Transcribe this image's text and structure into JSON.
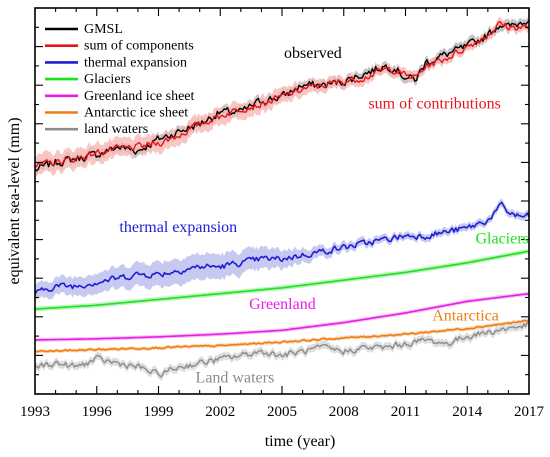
{
  "chart_data": {
    "type": "line",
    "title": "",
    "xlabel": "time (year)",
    "ylabel": "equivalent sea-level (mm)",
    "xlim": [
      1993,
      2017
    ],
    "ylim": [
      0,
      100
    ],
    "x_ticks": [
      1993,
      1996,
      1999,
      2002,
      2005,
      2008,
      2011,
      2014,
      2017
    ],
    "x_tick_labels": [
      "1993",
      "1996",
      "1999",
      "2002",
      "2005",
      "2008",
      "2011",
      "2014",
      "2017"
    ],
    "y_tick_labels_shown": false,
    "legend": {
      "placement": "top-left",
      "entries": [
        {
          "label": "GMSL",
          "color": "#000000"
        },
        {
          "label": "sum of components",
          "color": "#e8141b"
        },
        {
          "label": "thermal expansion",
          "color": "#1f1fd6"
        },
        {
          "label": "Glaciers",
          "color": "#1ee01e"
        },
        {
          "label": "Greenland ice sheet",
          "color": "#e81ee8"
        },
        {
          "label": "Antarctic ice sheet",
          "color": "#f07d14"
        },
        {
          "label": "land waters",
          "color": "#8c8c8c"
        }
      ]
    },
    "series": [
      {
        "key": "gmsl",
        "name": "GMSL",
        "color": "#000000",
        "width": 1.4,
        "noise": 1.3,
        "band_color": "#b5b5b5",
        "band": 1.2,
        "x": [
          1993,
          1994,
          1995,
          1996,
          1997,
          1998,
          1999,
          2000,
          2001,
          2002,
          2003,
          2004,
          2005,
          2006,
          2007,
          2008,
          2009,
          2010,
          2010.5,
          2011,
          2011.5,
          2012,
          2013,
          2014,
          2015,
          2015.6,
          2016,
          2016.5,
          2017
        ],
        "y": [
          58,
          60,
          61,
          62,
          64,
          63,
          66,
          68,
          70,
          73,
          73,
          76,
          77,
          80,
          80,
          81,
          83,
          85,
          84.5,
          82,
          81.5,
          86,
          88,
          90,
          93,
          96,
          95,
          96,
          97.5
        ]
      },
      {
        "key": "sum",
        "name": "sum of components",
        "color": "#e8141b",
        "width": 1.4,
        "noise": 1.1,
        "band_color": "#f6b8b4",
        "x": [
          1993,
          1994,
          1995,
          1996,
          1997,
          1998,
          1999,
          2000,
          2001,
          2002,
          2003,
          2004,
          2005,
          2006,
          2007,
          2008,
          2009,
          2010,
          2010.5,
          2011,
          2011.5,
          2012,
          2013,
          2014,
          2015,
          2015.6,
          2016,
          2016.5,
          2017
        ],
        "y": [
          59,
          60,
          61,
          62.5,
          63.5,
          64,
          65,
          67,
          70,
          72,
          74,
          75,
          77,
          79,
          80,
          81,
          82,
          84,
          84,
          82.5,
          82,
          85,
          87,
          90,
          93,
          96,
          95,
          95,
          95
        ],
        "band": [
          2.6,
          2.6,
          2.5,
          2.5,
          2.4,
          2.4,
          2.3,
          2.3,
          2.2,
          2.2,
          2.1,
          2.1,
          2.0,
          1.8,
          1.6,
          1.5,
          1.4,
          1.3,
          1.3,
          1.3,
          1.3,
          1.2,
          1.2,
          1.2,
          1.2,
          1.2,
          1.2,
          1.2,
          1.2
        ]
      },
      {
        "key": "thermal",
        "name": "thermal expansion",
        "color": "#1f1fd6",
        "width": 1.6,
        "noise": 1.0,
        "band_color": "#b9bbee",
        "x": [
          1993,
          1994,
          1995,
          1996,
          1997,
          1998,
          1999,
          2000,
          2001,
          2002,
          2003,
          2004,
          2005,
          2006,
          2007,
          2008,
          2009,
          2010,
          2011,
          2012,
          2013,
          2014,
          2015,
          2015.7,
          2016,
          2016.5,
          2017
        ],
        "y": [
          26,
          28,
          28,
          29,
          30,
          31,
          31,
          32,
          33,
          33,
          34,
          35,
          35,
          36,
          37,
          38,
          39,
          40,
          41,
          41,
          42,
          43,
          45,
          49,
          47,
          46,
          46
        ],
        "band": [
          2.0,
          2.2,
          2.4,
          2.6,
          2.8,
          3.0,
          3.2,
          3.3,
          3.3,
          3.2,
          3.0,
          2.8,
          2.4,
          1.8,
          1.4,
          1.2,
          1.1,
          1.0,
          1.0,
          1.0,
          1.0,
          1.0,
          1.0,
          1.0,
          1.0,
          1.0,
          1.0
        ]
      },
      {
        "key": "glaciers",
        "name": "Glaciers",
        "color": "#1ee01e",
        "width": 1.6,
        "noise": 0.0,
        "band_color": "#a8f2a8",
        "band": 0.6,
        "x": [
          1993,
          1996,
          1999,
          2002,
          2005,
          2008,
          2011,
          2014,
          2017
        ],
        "y": [
          22,
          23,
          24.5,
          26,
          27.5,
          29.5,
          31.5,
          34,
          37
        ]
      },
      {
        "key": "greenland",
        "name": "Greenland ice sheet",
        "color": "#e81ee8",
        "width": 1.6,
        "noise": 0.0,
        "band_color": "#f4b2f4",
        "band": 0.5,
        "x": [
          1993,
          1996,
          1999,
          2002,
          2005,
          2008,
          2011,
          2014,
          2017
        ],
        "y": [
          14,
          14.3,
          14.8,
          15.5,
          16.5,
          18.5,
          21,
          24,
          26
        ]
      },
      {
        "key": "antarctic",
        "name": "Antarctic ice sheet",
        "color": "#f07d14",
        "width": 1.6,
        "noise": 0.25,
        "band_color": "#f9cfa5",
        "band": 0.5,
        "x": [
          1993,
          1996,
          1999,
          2002,
          2005,
          2008,
          2011,
          2014,
          2017
        ],
        "y": [
          11,
          11.5,
          12,
          12.5,
          13.5,
          14.5,
          15.5,
          17,
          19
        ]
      },
      {
        "key": "land",
        "name": "land waters",
        "color": "#8c8c8c",
        "width": 1.4,
        "noise": 1.0,
        "band_color": "#d6d6d6",
        "band": 1.0,
        "x": [
          1993,
          1994,
          1995,
          1996,
          1997,
          1998,
          1999,
          2000,
          2001,
          2002,
          2003,
          2004,
          2005,
          2006,
          2007,
          2008,
          2009,
          2010,
          2011,
          2012,
          2013,
          2014,
          2015,
          2016,
          2017
        ],
        "y": [
          7,
          8,
          7,
          9,
          8,
          7,
          5,
          7,
          8,
          9,
          10,
          11,
          10,
          11,
          12,
          11,
          12,
          12,
          13,
          14,
          13,
          15,
          16,
          17,
          18
        ]
      }
    ],
    "annotations": [
      {
        "text": "observed",
        "color": "#000000",
        "x": 2005.1,
        "y": 87
      },
      {
        "text": "sum of contributions",
        "color": "#e8141b",
        "x": 2009.2,
        "y": 74
      },
      {
        "text": "thermal expansion",
        "color": "#1f1fd6",
        "x": 1997.1,
        "y": 42
      },
      {
        "text": "Glaciers",
        "color": "#1ee01e",
        "x": 2014.4,
        "y": 39
      },
      {
        "text": "Greenland",
        "color": "#e81ee8",
        "x": 2003.4,
        "y": 22
      },
      {
        "text": "Antarctica",
        "color": "#f07d14",
        "x": 2012.3,
        "y": 19
      },
      {
        "text": "Land waters",
        "color": "#8c8c8c",
        "x": 2000.8,
        "y": 3
      }
    ]
  }
}
